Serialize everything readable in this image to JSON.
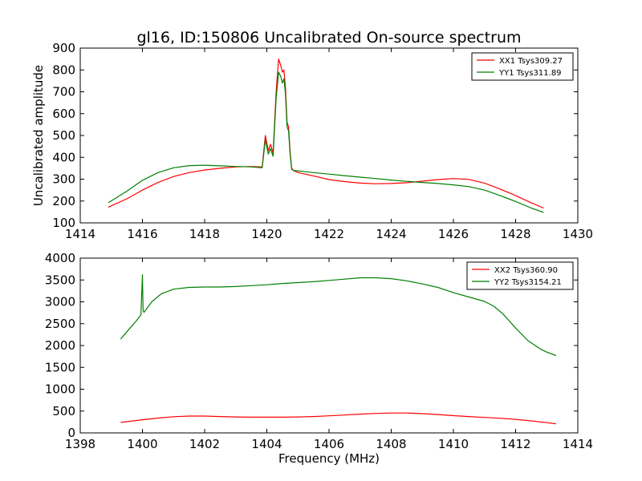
{
  "chart_data": [
    {
      "type": "line",
      "title": "gl16, ID:150806 Uncalibrated On-source spectrum",
      "xlabel": "",
      "ylabel": "Uncalibrated amplitude",
      "xlim": [
        1414,
        1430
      ],
      "ylim": [
        100,
        900
      ],
      "xticks": [
        "1414",
        "1416",
        "1418",
        "1420",
        "1422",
        "1424",
        "1426",
        "1428",
        "1430"
      ],
      "yticks": [
        "100",
        "200",
        "300",
        "400",
        "500",
        "600",
        "700",
        "800",
        "900"
      ],
      "legend_position": "top-right",
      "series": [
        {
          "name": "XX1 Tsys309.27",
          "color": "#ff0000",
          "x": [
            1414.9,
            1415.5,
            1416.0,
            1416.5,
            1417.0,
            1417.5,
            1418.0,
            1418.5,
            1419.0,
            1419.5,
            1419.85,
            1419.95,
            1420.05,
            1420.12,
            1420.2,
            1420.25,
            1420.3,
            1420.38,
            1420.45,
            1420.5,
            1420.55,
            1420.6,
            1420.65,
            1420.7,
            1420.75,
            1420.8,
            1420.85,
            1421.0,
            1421.5,
            1422.0,
            1422.5,
            1423.0,
            1423.5,
            1424.0,
            1424.5,
            1425.0,
            1425.5,
            1426.0,
            1426.5,
            1427.0,
            1427.5,
            1428.0,
            1428.5,
            1428.9
          ],
          "values": [
            172,
            210,
            250,
            285,
            312,
            330,
            342,
            350,
            356,
            358,
            356,
            500,
            430,
            460,
            420,
            560,
            700,
            850,
            820,
            790,
            800,
            720,
            560,
            540,
            420,
            350,
            340,
            330,
            315,
            298,
            289,
            282,
            279,
            280,
            284,
            291,
            298,
            303,
            299,
            282,
            255,
            225,
            192,
            168
          ]
        },
        {
          "name": "YY1 Tsys311.89",
          "color": "#008000",
          "x": [
            1414.9,
            1415.5,
            1416.0,
            1416.5,
            1417.0,
            1417.5,
            1418.0,
            1418.5,
            1419.0,
            1419.5,
            1419.85,
            1419.95,
            1420.05,
            1420.12,
            1420.2,
            1420.25,
            1420.3,
            1420.38,
            1420.45,
            1420.5,
            1420.55,
            1420.6,
            1420.65,
            1420.7,
            1420.75,
            1420.8,
            1420.85,
            1421.0,
            1421.5,
            1422.0,
            1422.5,
            1423.0,
            1423.5,
            1424.0,
            1424.5,
            1425.0,
            1425.5,
            1426.0,
            1426.5,
            1427.0,
            1427.5,
            1428.0,
            1428.5,
            1428.9
          ],
          "values": [
            192,
            245,
            295,
            330,
            352,
            362,
            364,
            361,
            358,
            356,
            352,
            480,
            415,
            440,
            405,
            540,
            670,
            790,
            770,
            740,
            760,
            690,
            540,
            520,
            410,
            345,
            340,
            338,
            330,
            323,
            316,
            309,
            303,
            296,
            290,
            285,
            280,
            274,
            266,
            250,
            225,
            198,
            168,
            148
          ]
        }
      ]
    },
    {
      "type": "line",
      "title": "",
      "xlabel": "Frequency (MHz)",
      "ylabel": "",
      "xlim": [
        1398,
        1414
      ],
      "ylim": [
        0,
        4000
      ],
      "xticks": [
        "1398",
        "1400",
        "1402",
        "1404",
        "1406",
        "1408",
        "1410",
        "1412",
        "1414"
      ],
      "yticks": [
        "0",
        "500",
        "1000",
        "1500",
        "2000",
        "2500",
        "3000",
        "3500",
        "4000"
      ],
      "legend_position": "top-right",
      "series": [
        {
          "name": "XX2 Tsys360.90",
          "color": "#ff0000",
          "x": [
            1399.3,
            1400.0,
            1400.5,
            1401.0,
            1401.5,
            1402.0,
            1402.5,
            1403.0,
            1403.5,
            1404.0,
            1404.5,
            1405.0,
            1405.5,
            1406.0,
            1406.5,
            1407.0,
            1407.5,
            1408.0,
            1408.5,
            1409.0,
            1409.5,
            1410.0,
            1410.5,
            1411.0,
            1411.5,
            1412.0,
            1412.5,
            1413.0,
            1413.3
          ],
          "values": [
            240,
            300,
            340,
            370,
            385,
            385,
            375,
            365,
            360,
            360,
            360,
            365,
            375,
            390,
            410,
            430,
            445,
            455,
            455,
            440,
            420,
            395,
            375,
            355,
            335,
            310,
            275,
            235,
            210
          ]
        },
        {
          "name": "YY2 Tsys3154.21",
          "color": "#008000",
          "x": [
            1399.3,
            1399.6,
            1399.8,
            1399.95,
            1400.0,
            1400.02,
            1400.05,
            1400.3,
            1400.6,
            1401.0,
            1401.5,
            1402.0,
            1402.5,
            1403.0,
            1403.5,
            1404.0,
            1404.5,
            1405.0,
            1405.5,
            1406.0,
            1406.5,
            1407.0,
            1407.5,
            1408.0,
            1408.5,
            1409.0,
            1409.5,
            1410.0,
            1410.5,
            1411.0,
            1411.3,
            1411.6,
            1412.0,
            1412.4,
            1412.8,
            1413.0,
            1413.3
          ],
          "values": [
            2150,
            2400,
            2560,
            2700,
            3620,
            2800,
            2760,
            3000,
            3180,
            3290,
            3330,
            3340,
            3340,
            3350,
            3370,
            3390,
            3420,
            3440,
            3460,
            3490,
            3520,
            3550,
            3550,
            3530,
            3480,
            3410,
            3330,
            3210,
            3110,
            3010,
            2900,
            2720,
            2400,
            2110,
            1920,
            1850,
            1770
          ]
        }
      ]
    }
  ]
}
